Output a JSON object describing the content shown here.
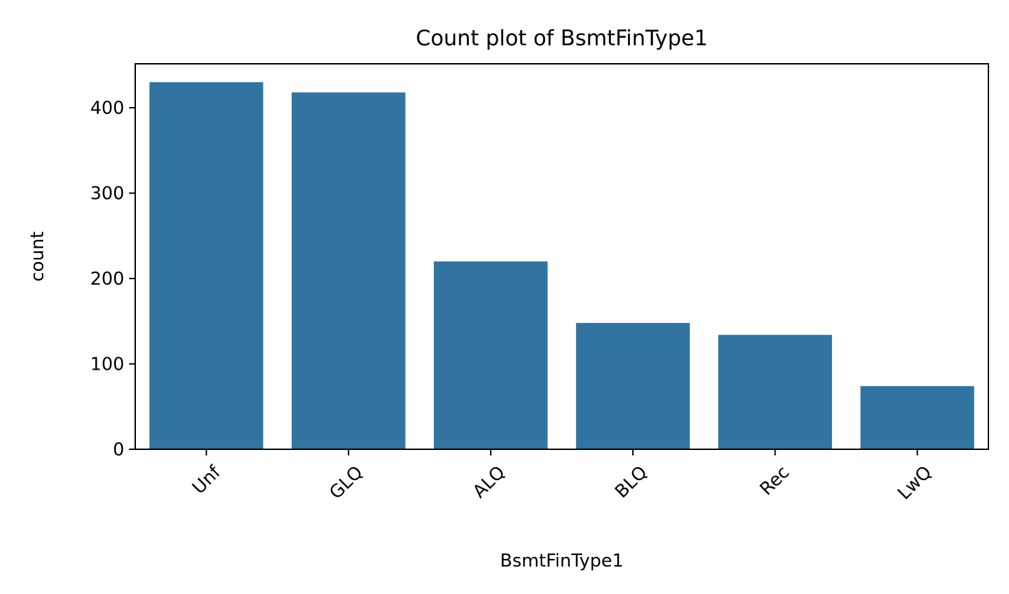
{
  "chart_data": {
    "type": "bar",
    "title": "Count plot of BsmtFinType1",
    "xlabel": "BsmtFinType1",
    "ylabel": "count",
    "categories": [
      "Unf",
      "GLQ",
      "ALQ",
      "BLQ",
      "Rec",
      "LwQ"
    ],
    "values": [
      430,
      418,
      220,
      148,
      134,
      74
    ],
    "ylim": [
      0,
      451.5
    ],
    "yticks": [
      0,
      100,
      200,
      300,
      400
    ],
    "ytick_labels": [
      "0",
      "100",
      "200",
      "300",
      "400"
    ],
    "xtick_rotation": 45,
    "grid": false,
    "legend": "none",
    "bar_color": "#3274a1"
  }
}
